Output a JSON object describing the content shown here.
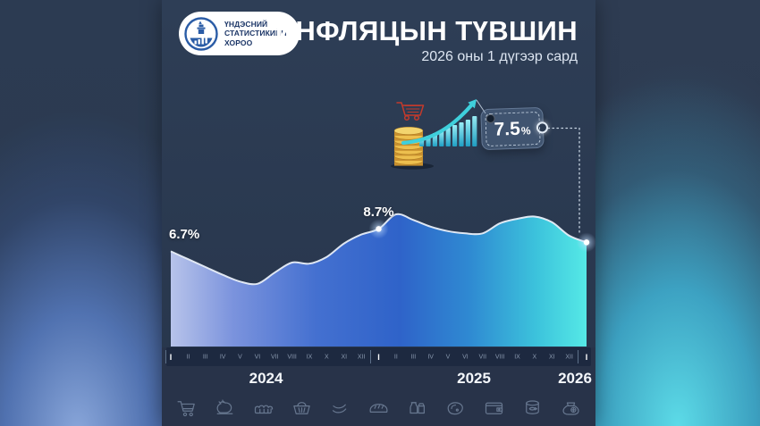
{
  "header": {
    "logo": {
      "org_lines": [
        "ҮНДЭСНИЙ",
        "СТАТИСТИКИЙН",
        "ХОРОО"
      ]
    },
    "title": "ИНФЛЯЦЫН ТҮВШИН",
    "subtitle": "2026 оны 1 дүгээр сард"
  },
  "highlight": {
    "value": "7.5",
    "unit": "%"
  },
  "chart_data": {
    "type": "area",
    "title": "ИНФЛЯЦЫН ТҮВШИН",
    "unit": "%",
    "xlabel": "",
    "ylabel": "",
    "years": [
      {
        "label": "2024",
        "months": [
          "I",
          "II",
          "III",
          "IV",
          "V",
          "VI",
          "VII",
          "VIII",
          "IX",
          "X",
          "XI",
          "XII"
        ]
      },
      {
        "label": "2025",
        "months": [
          "I",
          "II",
          "III",
          "IV",
          "V",
          "VI",
          "VII",
          "VIII",
          "IX",
          "X",
          "XI",
          "XII"
        ]
      },
      {
        "label": "2026",
        "months": [
          "I"
        ]
      }
    ],
    "values": [
      6.7,
      6.0,
      5.3,
      4.6,
      4.0,
      3.8,
      4.8,
      5.7,
      5.6,
      6.2,
      7.4,
      8.2,
      8.7,
      10.0,
      9.5,
      8.9,
      8.5,
      8.3,
      8.3,
      9.2,
      9.6,
      9.8,
      9.3,
      8.1,
      7.5
    ],
    "dot_indices": [
      12,
      24
    ],
    "annotations": [
      {
        "index": 0,
        "label": "6.7%"
      },
      {
        "index": 12,
        "label": "8.7%"
      },
      {
        "index": 24,
        "label": "7.5%",
        "shown_in": "tag"
      }
    ],
    "ylim": [
      -1.8,
      10.8
    ],
    "grid": false,
    "legend": "none"
  },
  "footer_icons": [
    "shopping-cart",
    "chicken",
    "eggs",
    "grocery-basket",
    "sausages",
    "bread",
    "dairy",
    "meat-steak",
    "wallet",
    "canned-fish",
    "coin-purse"
  ],
  "colors": {
    "panel_bg": "#2b3a50",
    "axis_band_bg": "#1d2940",
    "area_left": "#b7c3ea",
    "area_mid": "#2f63c9",
    "area_right": "#55e9e6",
    "line": "#e8eef8",
    "tag_fill": "#46607e",
    "coin_gold": "#edbf4e",
    "cart_red": "#c23a2c",
    "icon_stroke": "#72839c",
    "left_glow": "#87a8e2",
    "right_glow": "#5ae2ee"
  }
}
